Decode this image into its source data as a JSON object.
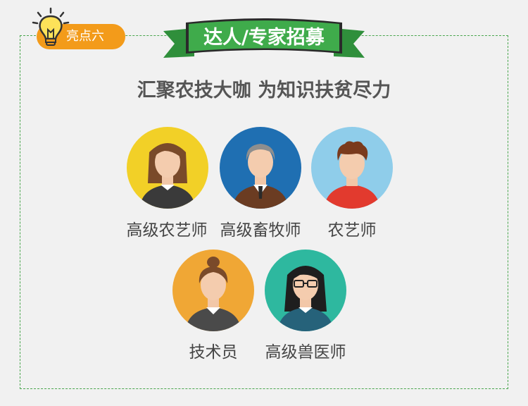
{
  "badge": {
    "label": "亮点六",
    "icon": "lightbulb-icon"
  },
  "banner": {
    "title": "达人/专家招募"
  },
  "subtitle": "汇聚农技大咖 为知识扶贫尽力",
  "experts": [
    {
      "label": "高级农艺师",
      "avatar_color": "#f2d027",
      "avatar": "woman-brown-hair-avatar"
    },
    {
      "label": "高级畜牧师",
      "avatar_color": "#1f6fb2",
      "avatar": "older-man-suit-avatar"
    },
    {
      "label": "农艺师",
      "avatar_color": "#8fcdea",
      "avatar": "young-man-red-shirt-avatar"
    },
    {
      "label": "技术员",
      "avatar_color": "#f0a735",
      "avatar": "woman-bun-blazer-avatar"
    },
    {
      "label": "高级兽医师",
      "avatar_color": "#2eb89f",
      "avatar": "woman-glasses-avatar"
    }
  ],
  "colors": {
    "accent_green": "#3fab4b",
    "badge_orange": "#f39b1a",
    "background": "#f1f1f1"
  }
}
